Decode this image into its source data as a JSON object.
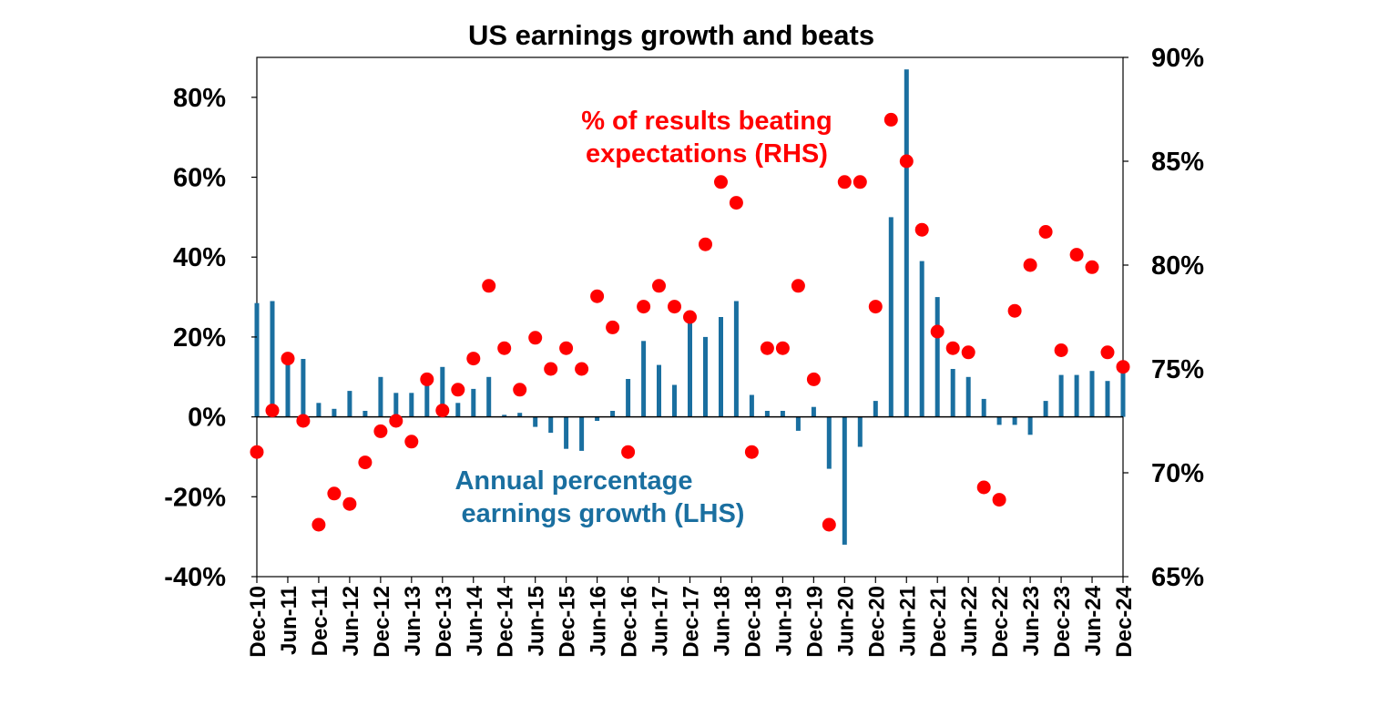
{
  "chart_data": {
    "type": "bar+scatter",
    "title": "US earnings growth and beats",
    "x_tick_labels": [
      "Dec-10",
      "Jun-11",
      "Dec-11",
      "Jun-12",
      "Dec-12",
      "Jun-13",
      "Dec-13",
      "Jun-14",
      "Dec-14",
      "Jun-15",
      "Dec-15",
      "Jun-16",
      "Dec-16",
      "Jun-17",
      "Dec-17",
      "Jun-18",
      "Dec-18",
      "Jun-19",
      "Dec-19",
      "Jun-20",
      "Dec-20",
      "Jun-21",
      "Dec-21",
      "Jun-22",
      "Dec-22",
      "Jun-23",
      "Dec-23",
      "Jun-24",
      "Dec-24"
    ],
    "left_axis": {
      "ylim": [
        -40,
        90
      ],
      "ticks": [
        "-40%",
        "-20%",
        "0%",
        "20%",
        "40%",
        "60%",
        "80%"
      ],
      "tick_values": [
        -40,
        -20,
        0,
        20,
        40,
        60,
        80
      ]
    },
    "right_axis": {
      "ylim": [
        65,
        90
      ],
      "ticks": [
        "65%",
        "70%",
        "75%",
        "80%",
        "85%",
        "90%"
      ],
      "tick_values": [
        65,
        70,
        75,
        80,
        85,
        90
      ]
    },
    "quarters": [
      "Dec-10",
      "Mar-11",
      "Jun-11",
      "Sep-11",
      "Dec-11",
      "Mar-12",
      "Jun-12",
      "Sep-12",
      "Dec-12",
      "Mar-13",
      "Jun-13",
      "Sep-13",
      "Dec-13",
      "Mar-14",
      "Jun-14",
      "Sep-14",
      "Dec-14",
      "Mar-15",
      "Jun-15",
      "Sep-15",
      "Dec-15",
      "Mar-16",
      "Jun-16",
      "Sep-16",
      "Dec-16",
      "Mar-17",
      "Jun-17",
      "Sep-17",
      "Dec-17",
      "Mar-18",
      "Jun-18",
      "Sep-18",
      "Dec-18",
      "Mar-19",
      "Jun-19",
      "Sep-19",
      "Dec-19",
      "Mar-20",
      "Jun-20",
      "Sep-20",
      "Dec-20",
      "Mar-21",
      "Jun-21",
      "Sep-21",
      "Dec-21",
      "Mar-22",
      "Jun-22",
      "Sep-22",
      "Dec-22",
      "Mar-23",
      "Jun-23",
      "Sep-23",
      "Dec-23",
      "Mar-24",
      "Jun-24",
      "Sep-24",
      "Dec-24"
    ],
    "series": [
      {
        "name": "Annual percentage earnings growth (LHS)",
        "kind": "bar",
        "axis": "left",
        "color": "#1a6fa0",
        "values": [
          28.5,
          29,
          13.5,
          14.5,
          3.5,
          2,
          6.5,
          1.5,
          10,
          6,
          6,
          8.5,
          12.5,
          3.5,
          7,
          10,
          0.5,
          1,
          -2.5,
          -4,
          -8,
          -8.5,
          -1,
          1.5,
          9.5,
          19,
          13,
          8,
          24.5,
          20,
          25,
          29,
          5.5,
          1.5,
          1.5,
          -3.5,
          2.5,
          -13,
          -32,
          -7.5,
          4,
          50,
          87,
          39,
          30,
          12,
          10,
          4.5,
          -2,
          -2,
          -4.5,
          4,
          10.5,
          10.5,
          11.5,
          9,
          12
        ]
      },
      {
        "name": "% of results beating expectations (RHS)",
        "kind": "scatter",
        "axis": "right",
        "color": "#ff0000",
        "values": [
          71,
          73,
          75.5,
          72.5,
          67.5,
          69,
          68.5,
          70.5,
          72,
          72.5,
          71.5,
          74.5,
          73,
          74,
          75.5,
          79,
          76,
          74,
          76.5,
          75,
          76,
          75,
          78.5,
          77,
          71,
          78,
          79,
          78,
          77.5,
          81,
          84,
          83,
          71,
          76,
          76,
          79,
          74.5,
          67.5,
          84,
          84,
          78,
          87,
          85,
          81.7,
          76.8,
          76,
          75.8,
          69.3,
          68.7,
          77.8,
          80,
          81.6,
          75.9,
          80.5,
          79.9,
          75.8,
          75.1
        ]
      }
    ],
    "annotations": {
      "beats_label": [
        "% of results beating",
        "expectations (RHS)"
      ],
      "growth_label": [
        "Annual percentage",
        "earnings growth (LHS)"
      ]
    },
    "grid": false,
    "legend": "none"
  }
}
